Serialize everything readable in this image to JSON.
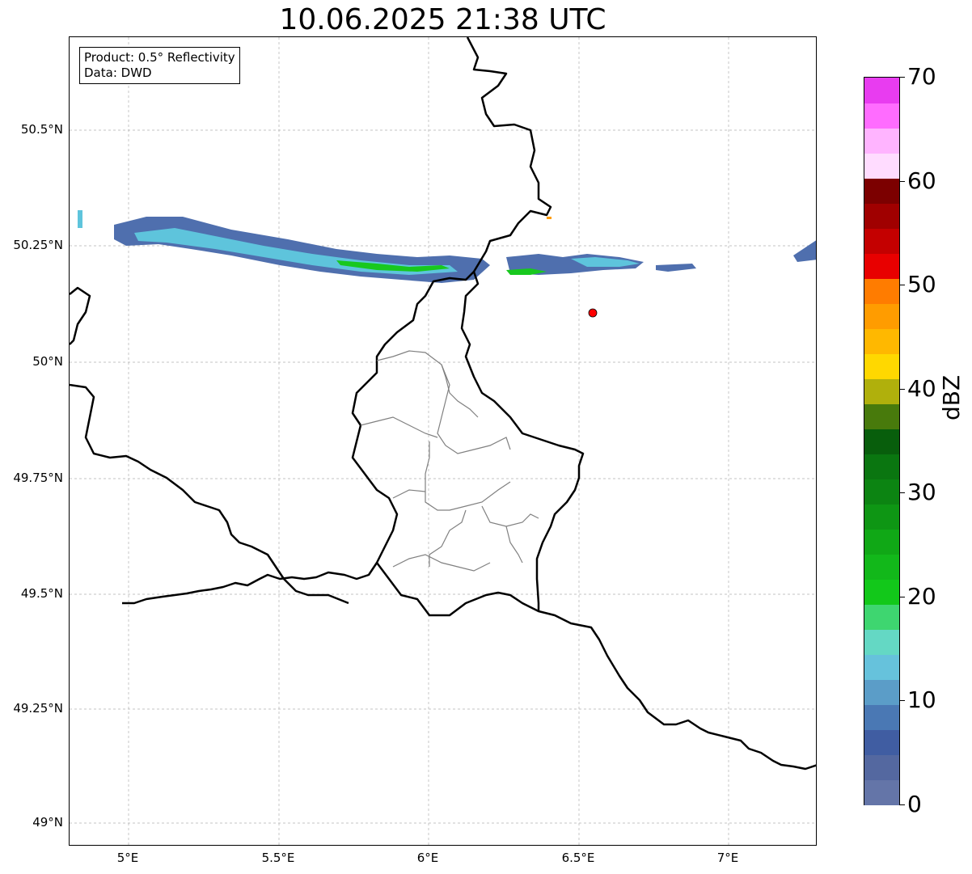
{
  "title": "10.06.2025 21:38 UTC",
  "info": {
    "product": "Product: 0.5° Reflectivity",
    "data": "Data: DWD"
  },
  "map": {
    "extent": {
      "lon_min": 4.8,
      "lon_max": 7.3,
      "lat_min": 48.95,
      "lat_max": 50.7
    },
    "lat_ticks": [
      {
        "value": 50.5,
        "label": "50.5°N"
      },
      {
        "value": 50.25,
        "label": "50.25°N"
      },
      {
        "value": 50.0,
        "label": "50°N"
      },
      {
        "value": 49.75,
        "label": "49.75°N"
      },
      {
        "value": 49.5,
        "label": "49.5°N"
      },
      {
        "value": 49.25,
        "label": "49.25°N"
      },
      {
        "value": 49.0,
        "label": "49°N"
      }
    ],
    "lon_ticks": [
      {
        "value": 5.0,
        "label": "5°E"
      },
      {
        "value": 5.5,
        "label": "5.5°E"
      },
      {
        "value": 6.0,
        "label": "6°E"
      },
      {
        "value": 6.5,
        "label": "6.5°E"
      },
      {
        "value": 7.0,
        "label": "7°E"
      }
    ],
    "marker": {
      "lon": 6.545,
      "lat": 50.11,
      "color": "#ff0000"
    }
  },
  "colorbar": {
    "unit": "dBZ",
    "min": 0,
    "max": 70,
    "tick_labels": [
      "0",
      "10",
      "20",
      "30",
      "40",
      "50",
      "60",
      "70"
    ],
    "colors": [
      "#6475a8",
      "#5468a0",
      "#405da2",
      "#4a78b4",
      "#5b9dc8",
      "#66c2dc",
      "#64d8c4",
      "#3ed670",
      "#12c81a",
      "#12b81a",
      "#10a816",
      "#0e9614",
      "#0c8412",
      "#0a7610",
      "#085e0c",
      "#487a0c",
      "#b0b00c",
      "#ffd800",
      "#ffb800",
      "#ff9c00",
      "#ff7c00",
      "#e80000",
      "#c40000",
      "#a00000",
      "#7c0000",
      "#ffdcff",
      "#ffb4ff",
      "#ff6cff",
      "#e83cf0"
    ]
  }
}
